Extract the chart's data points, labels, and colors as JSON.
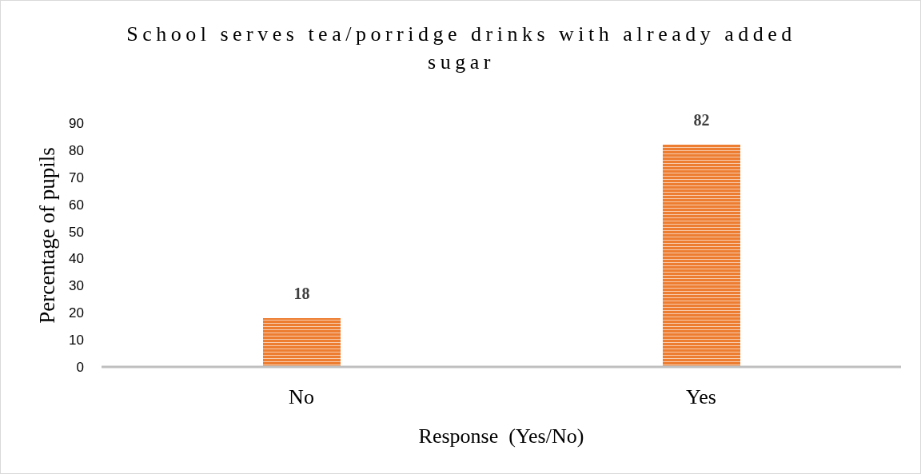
{
  "chart_data": {
    "type": "bar",
    "title": "School serves tea/porridge drinks with already added sugar",
    "xlabel": "Response  (Yes/No)",
    "ylabel": "Percentage of pupils",
    "categories": [
      "No",
      "Yes"
    ],
    "values": [
      18,
      82
    ],
    "color": "#ed7d31",
    "ylim": [
      0,
      90
    ],
    "yticks": [
      0,
      10,
      20,
      30,
      40,
      50,
      60,
      70,
      80,
      90
    ],
    "data_labels": true
  }
}
